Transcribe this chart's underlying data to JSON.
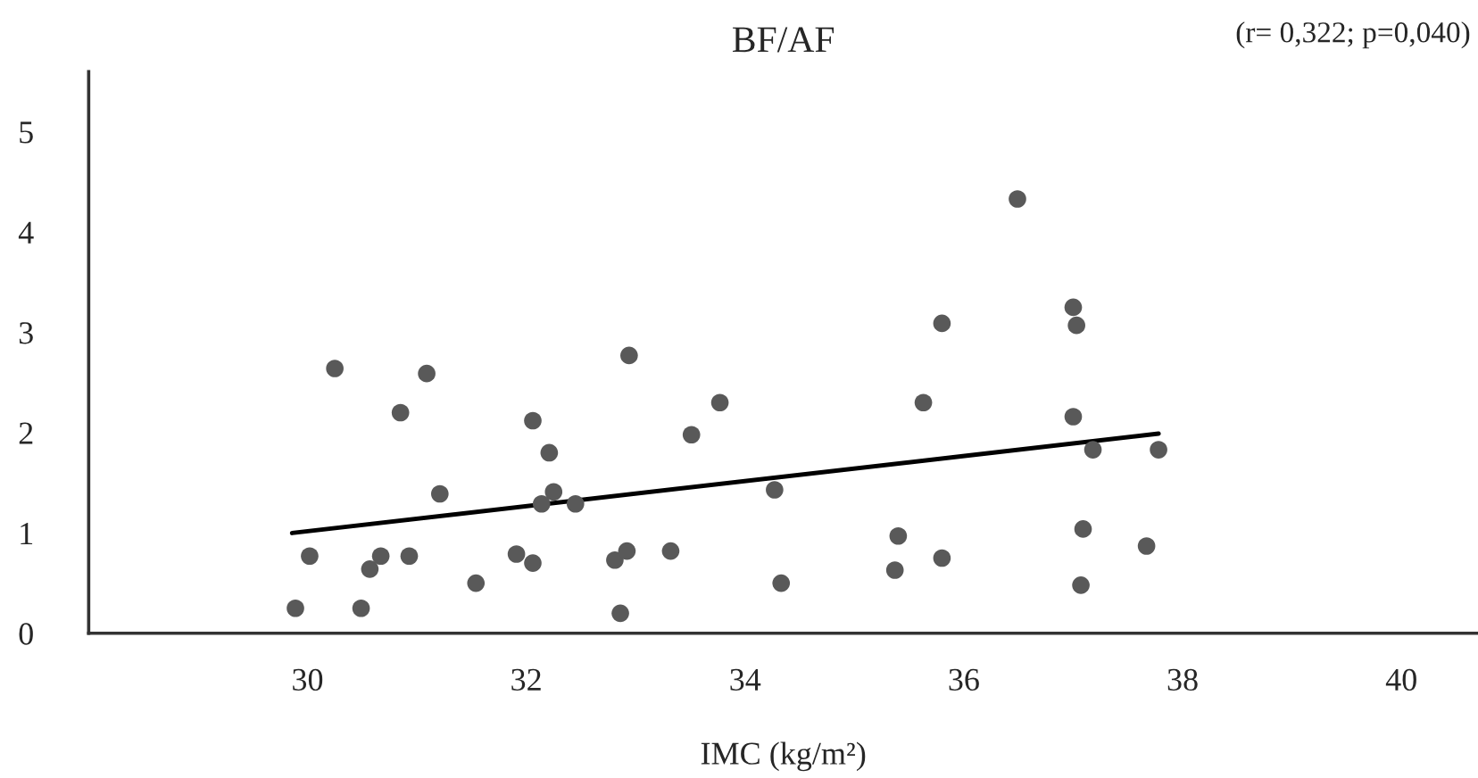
{
  "chart_data": {
    "type": "scatter",
    "title": "BF/AF",
    "xlabel": "IMC (kg/m²)",
    "annotations": [
      "(r= 0,322; p=0,040)"
    ],
    "xlim": [
      28,
      40.7
    ],
    "xticks": [
      30,
      32,
      34,
      36,
      38,
      40
    ],
    "ylim": [
      0,
      5.6
    ],
    "yticks": [
      0,
      1,
      2,
      3,
      4,
      5
    ],
    "grid": false,
    "series": [
      {
        "marker": "circle",
        "color": "#595959",
        "x": [
          29.89,
          30.02,
          30.25,
          30.49,
          30.57,
          30.67,
          30.85,
          30.93,
          31.09,
          31.21,
          31.54,
          31.91,
          32.06,
          32.06,
          32.21,
          32.14,
          32.25,
          32.45,
          32.81,
          32.86,
          32.92,
          32.94,
          33.32,
          33.51,
          33.77,
          34.27,
          34.33,
          35.4,
          35.37,
          35.63,
          35.8,
          35.8,
          36.49,
          37.0,
          37.03,
          37.0,
          37.18,
          37.09,
          37.07,
          37.67,
          37.78
        ],
        "values": [
          0.25,
          0.77,
          2.64,
          0.25,
          0.64,
          0.77,
          2.2,
          0.77,
          2.59,
          1.39,
          0.5,
          0.79,
          2.12,
          0.7,
          1.8,
          1.29,
          1.41,
          1.29,
          0.73,
          0.2,
          0.82,
          2.77,
          0.82,
          1.98,
          2.3,
          1.43,
          0.5,
          0.97,
          0.63,
          2.3,
          3.09,
          0.75,
          4.33,
          3.25,
          3.07,
          2.16,
          1.83,
          1.04,
          0.48,
          0.87,
          1.83
        ]
      },
      {
        "type": "line",
        "color": "#000000",
        "x": [
          29.86,
          37.78
        ],
        "values": [
          1.0,
          1.99
        ]
      }
    ]
  }
}
